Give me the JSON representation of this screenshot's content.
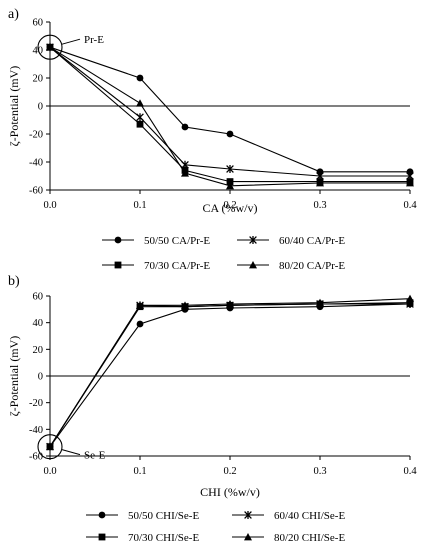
{
  "chart_data": [
    {
      "panel_label": "a)",
      "type": "line",
      "xlabel": "CA (%w/v)",
      "ylabel": "ζ-Potential (mV)",
      "xlim": [
        0,
        0.4
      ],
      "ylim": [
        -60,
        60
      ],
      "xticks": [
        "0.0",
        "0.1",
        "0.2",
        "0.3",
        "0.4"
      ],
      "yticks": [
        "60",
        "40",
        "20",
        "0",
        "-20",
        "-40",
        "-60"
      ],
      "x": [
        0,
        0.1,
        0.15,
        0.2,
        0.3,
        0.4
      ],
      "series": [
        {
          "name": "50/50 CA/Pr-E",
          "marker": "circle",
          "values": [
            42,
            20,
            -15,
            -20,
            -47,
            -47
          ]
        },
        {
          "name": "60/40 CA/Pr-E",
          "marker": "star",
          "values": [
            42,
            -8,
            -42,
            -45,
            -50,
            -50
          ]
        },
        {
          "name": "70/30 CA/Pr-E",
          "marker": "square",
          "values": [
            42,
            -13,
            -46,
            -54,
            -54,
            -54
          ]
        },
        {
          "name": "80/20 CA/Pr-E",
          "marker": "triangle",
          "values": [
            42,
            2,
            -48,
            -57,
            -55,
            -55
          ]
        }
      ],
      "annotation": "Pr-E",
      "grid": false,
      "legend_position": "bottom"
    },
    {
      "panel_label": "b)",
      "type": "line",
      "xlabel": "CHI (%w/v)",
      "ylabel": "ζ-Potential (mV)",
      "xlim": [
        0,
        0.4
      ],
      "ylim": [
        -60,
        60
      ],
      "xticks": [
        "0.0",
        "0.1",
        "0.2",
        "0.3",
        "0.4"
      ],
      "yticks": [
        "60",
        "40",
        "20",
        "0",
        "-20",
        "-40",
        "-60"
      ],
      "x": [
        0,
        0.1,
        0.15,
        0.2,
        0.3,
        0.4
      ],
      "series": [
        {
          "name": "50/50 CHI/Se-E",
          "marker": "circle",
          "values": [
            -53,
            39,
            50,
            51,
            52,
            54
          ]
        },
        {
          "name": "60/40 CHI/Se-E",
          "marker": "star",
          "values": [
            -53,
            53,
            52,
            53,
            54,
            54
          ]
        },
        {
          "name": "70/30 CHI/Se-E",
          "marker": "square",
          "values": [
            -53,
            52,
            52,
            53,
            54,
            55
          ]
        },
        {
          "name": "80/20 CHI/Se-E",
          "marker": "triangle",
          "values": [
            -53,
            53,
            53,
            54,
            55,
            58
          ]
        }
      ],
      "annotation": "Se-E",
      "grid": false,
      "legend_position": "bottom"
    }
  ]
}
